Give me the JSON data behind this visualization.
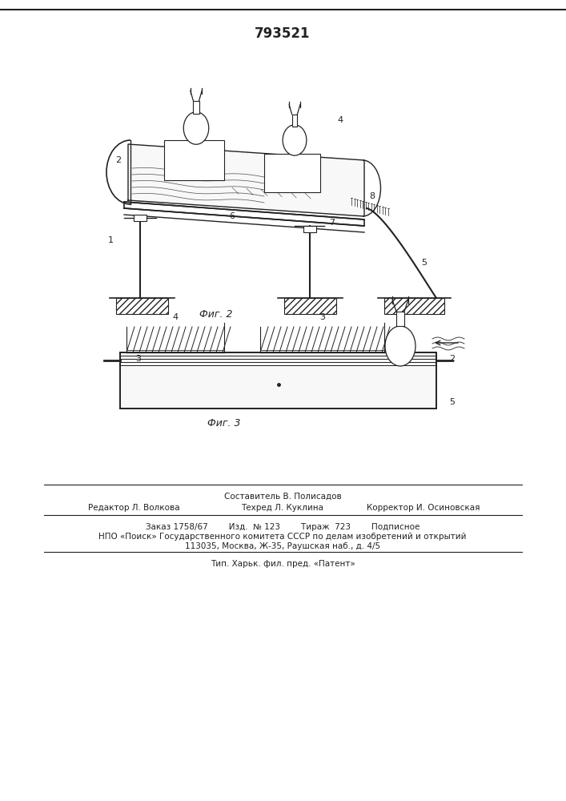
{
  "title": "793521",
  "fig1_caption": "Фиг. 2",
  "fig2_caption": "Фиг. 3",
  "footer_sestavitel": "Составитель В. Полисадов",
  "footer_editor": "Редактор Л. Волкова",
  "footer_techred": "Техред Л. Куклина",
  "footer_corrector": "Корректор И. Осиновская",
  "footer_order": "Заказ 1758/67        Изд.  № 123        Тираж  723        Подписное",
  "footer_npo": "НПО «Поиск» Государственного комитета СССР по делам изобретений и открытий",
  "footer_addr": "113035, Москва, Ж-35, Раушская наб., д. 4/5",
  "footer_tip": "Тип. Харьк. фил. пред. «Патент»",
  "bg_color": "#ffffff",
  "line_color": "#222222"
}
